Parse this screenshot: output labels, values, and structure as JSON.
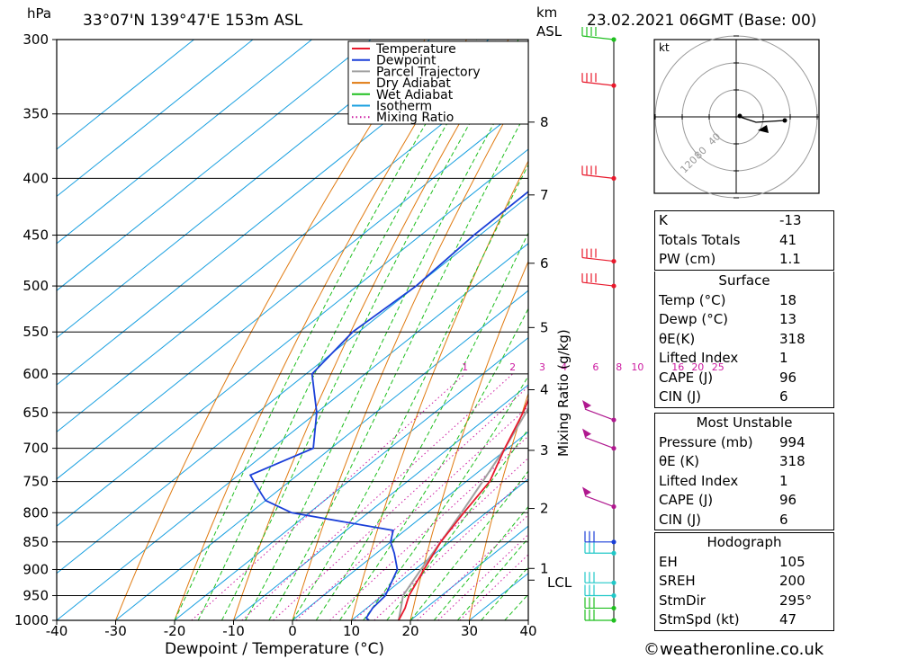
{
  "header": {
    "pressure_unit": "hPa",
    "location": "33°07'N  139°47'E  153m  ASL",
    "km_label": "km",
    "asl_label": "ASL",
    "datetime": "23.02.2021  06GMT  (Base: 00)"
  },
  "chart_data": {
    "type": "skew-t",
    "xlabel": "Dewpoint / Temperature (°C)",
    "ylabel_right": "Mixing Ratio (g/kg)",
    "x_ticks": [
      -40,
      -30,
      -20,
      -10,
      0,
      10,
      20,
      30,
      40
    ],
    "xlim": [
      -40,
      40
    ],
    "pressure_levels": [
      300,
      350,
      400,
      450,
      500,
      550,
      600,
      650,
      700,
      750,
      800,
      850,
      900,
      950,
      1000
    ],
    "ylim": [
      1000,
      300
    ],
    "km_ticks": [
      {
        "label": "8",
        "p": 356
      },
      {
        "label": "7",
        "p": 414
      },
      {
        "label": "6",
        "p": 477
      },
      {
        "label": "5",
        "p": 545
      },
      {
        "label": "4",
        "p": 620
      },
      {
        "label": "3",
        "p": 703
      },
      {
        "label": "2",
        "p": 793
      },
      {
        "label": "1",
        "p": 898
      }
    ],
    "lcl_label": "LCL",
    "lcl_pressure": 920,
    "mixing_ratio_labels": [
      "1",
      "2",
      "3",
      "4",
      "6",
      "8",
      "10",
      "16",
      "20",
      "25"
    ],
    "mixing_ratio_values": [
      1,
      2,
      3,
      4,
      6,
      8,
      10,
      16,
      20,
      25
    ],
    "legend": [
      "Temperature",
      "Dewpoint",
      "Parcel Trajectory",
      "Dry Adiabat",
      "Wet Adiabat",
      "Isotherm",
      "Mixing Ratio"
    ],
    "legend_placement": "top-right",
    "colors": {
      "temperature": "#e8192c",
      "dewpoint": "#1a3fd8",
      "parcel": "#a0a0a0",
      "dry_adiabat": "#e07a10",
      "wet_adiabat": "#1fbf1f",
      "isotherm": "#1aa0e0",
      "mixing_ratio": "#cc1aa0",
      "wind_axis": "#000000"
    },
    "temperature": [
      [
        1000,
        18
      ],
      [
        975,
        16.5
      ],
      [
        950,
        14.5
      ],
      [
        900,
        11.5
      ],
      [
        850,
        8.5
      ],
      [
        800,
        6.2
      ],
      [
        750,
        4.0
      ],
      [
        700,
        -0.5
      ],
      [
        650,
        -5
      ],
      [
        600,
        -10.5
      ],
      [
        580,
        -13
      ],
      [
        550,
        -17
      ],
      [
        500,
        -23
      ],
      [
        450,
        -30
      ],
      [
        400,
        -37.5
      ],
      [
        390,
        -39
      ],
      [
        350,
        -47
      ],
      [
        300,
        -57
      ]
    ],
    "dewpoint": [
      [
        1000,
        13
      ],
      [
        995,
        12
      ],
      [
        975,
        11
      ],
      [
        950,
        10.5
      ],
      [
        900,
        7
      ],
      [
        870,
        3
      ],
      [
        850,
        0
      ],
      [
        830,
        -2
      ],
      [
        800,
        -23
      ],
      [
        780,
        -30
      ],
      [
        770,
        -32
      ],
      [
        750,
        -36
      ],
      [
        740,
        -38
      ],
      [
        700,
        -33
      ],
      [
        650,
        -40
      ],
      [
        600,
        -49
      ],
      [
        550,
        -51
      ],
      [
        500,
        -50
      ],
      [
        450,
        -51
      ],
      [
        410,
        -51
      ],
      [
        400,
        -52
      ],
      [
        380,
        -51
      ],
      [
        370,
        -51
      ],
      [
        360,
        -47
      ],
      [
        350,
        -48
      ],
      [
        320,
        -53
      ]
    ],
    "parcel": [
      [
        1000,
        18
      ],
      [
        975,
        15.8
      ],
      [
        950,
        13.5
      ],
      [
        920,
        12
      ],
      [
        900,
        11
      ],
      [
        850,
        8.5
      ],
      [
        800,
        5.8
      ],
      [
        750,
        2.8
      ],
      [
        700,
        -0.5
      ],
      [
        650,
        -4.5
      ],
      [
        600,
        -9
      ],
      [
        550,
        -14.5
      ],
      [
        500,
        -21
      ],
      [
        450,
        -28.5
      ],
      [
        400,
        -38
      ],
      [
        350,
        -48
      ],
      [
        300,
        -59
      ]
    ],
    "wind_barbs": [
      {
        "p": 1000,
        "color": "#1fbf1f"
      },
      {
        "p": 975,
        "color": "#1fbf1f"
      },
      {
        "p": 950,
        "color": "#20c8c8"
      },
      {
        "p": 925,
        "color": "#20c8c8"
      },
      {
        "p": 870,
        "color": "#20c8c8"
      },
      {
        "p": 850,
        "color": "#1a3fd8"
      },
      {
        "p": 790,
        "color": "#b0188f"
      },
      {
        "p": 700,
        "color": "#b0188f"
      },
      {
        "p": 660,
        "color": "#b0188f"
      },
      {
        "p": 500,
        "color": "#e8192c"
      },
      {
        "p": 475,
        "color": "#e8192c"
      },
      {
        "p": 400,
        "color": "#e8192c"
      },
      {
        "p": 330,
        "color": "#e8192c"
      },
      {
        "p": 300,
        "color": "#1fbf1f"
      }
    ]
  },
  "hodograph": {
    "unit": "kt",
    "ring_labels": [
      "40",
      "80",
      "120"
    ]
  },
  "indices": {
    "rows": [
      {
        "label": "K",
        "value": "-13"
      },
      {
        "label": "Totals Totals",
        "value": "41"
      },
      {
        "label": "PW (cm)",
        "value": "1.1"
      }
    ]
  },
  "surface": {
    "title": "Surface",
    "rows": [
      {
        "label": "Temp (°C)",
        "value": "18"
      },
      {
        "label": "Dewp (°C)",
        "value": "13"
      },
      {
        "label": "θE(K)",
        "value": "318"
      },
      {
        "label": "Lifted Index",
        "value": "1"
      },
      {
        "label": "CAPE (J)",
        "value": "96"
      },
      {
        "label": "CIN (J)",
        "value": "6"
      }
    ]
  },
  "most_unstable": {
    "title": "Most Unstable",
    "rows": [
      {
        "label": "Pressure (mb)",
        "value": "994"
      },
      {
        "label": "θE (K)",
        "value": "318"
      },
      {
        "label": "Lifted Index",
        "value": "1"
      },
      {
        "label": "CAPE (J)",
        "value": "96"
      },
      {
        "label": "CIN (J)",
        "value": "6"
      }
    ]
  },
  "hodograph_table": {
    "title": "Hodograph",
    "rows": [
      {
        "label": "EH",
        "value": "105"
      },
      {
        "label": "SREH",
        "value": "200"
      },
      {
        "label": "StmDir",
        "value": "295°"
      },
      {
        "label": "StmSpd (kt)",
        "value": "47"
      }
    ]
  },
  "footer": {
    "copyright": "©weatheronline.co.uk"
  }
}
